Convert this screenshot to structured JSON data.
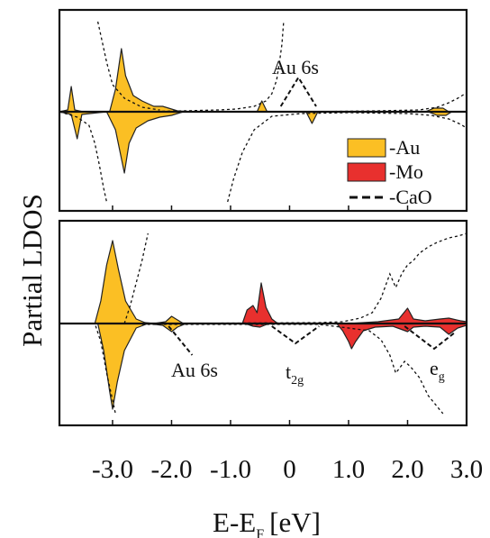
{
  "chart_data": [
    {
      "type": "area",
      "panel": "top",
      "x_range": [
        -3.9,
        3.0
      ],
      "y_range": [
        -1.0,
        1.0
      ],
      "grid": false,
      "legend": {
        "placement": "right",
        "entries": [
          {
            "label": "-Au",
            "style": "fill",
            "color": "#fbbf24"
          },
          {
            "label": "-Mo",
            "style": "fill",
            "color": "#e8302e"
          },
          {
            "label": "-CaO",
            "style": "dashed",
            "color": "#111111"
          }
        ]
      },
      "annotations": [
        {
          "text": "Au 6s",
          "x": 0.15,
          "y": 0.48,
          "pointers": [
            [
              -0.15,
              0.06
            ],
            [
              0.45,
              0.06
            ]
          ]
        }
      ],
      "series": [
        {
          "name": "Au",
          "color": "#fbbf24",
          "up": [
            [
              -3.9,
              0
            ],
            [
              -3.76,
              0.02
            ],
            [
              -3.7,
              0.28
            ],
            [
              -3.64,
              0.02
            ],
            [
              -3.5,
              0
            ],
            [
              -3.05,
              0
            ],
            [
              -2.95,
              0.25
            ],
            [
              -2.85,
              0.7
            ],
            [
              -2.78,
              0.4
            ],
            [
              -2.65,
              0.18
            ],
            [
              -2.5,
              0.12
            ],
            [
              -2.3,
              0.06
            ],
            [
              -2.15,
              0.06
            ],
            [
              -2.05,
              0.04
            ],
            [
              -1.9,
              0.01
            ],
            [
              -1.7,
              0
            ],
            [
              -0.55,
              0
            ],
            [
              -0.47,
              0.12
            ],
            [
              -0.38,
              0
            ],
            [
              2.3,
              0
            ],
            [
              2.45,
              0.04
            ],
            [
              2.6,
              0.04
            ],
            [
              2.7,
              0
            ],
            [
              3.0,
              0
            ]
          ],
          "down": [
            [
              -3.9,
              0
            ],
            [
              -3.7,
              -0.03
            ],
            [
              -3.6,
              -0.3
            ],
            [
              -3.52,
              -0.03
            ],
            [
              -3.1,
              0
            ],
            [
              -2.95,
              -0.2
            ],
            [
              -2.8,
              -0.68
            ],
            [
              -2.72,
              -0.35
            ],
            [
              -2.6,
              -0.18
            ],
            [
              -2.4,
              -0.1
            ],
            [
              -2.2,
              -0.06
            ],
            [
              -2.0,
              -0.04
            ],
            [
              -1.8,
              0
            ],
            [
              0.28,
              0
            ],
            [
              0.38,
              -0.13
            ],
            [
              0.48,
              0
            ],
            [
              2.35,
              0
            ],
            [
              2.5,
              -0.04
            ],
            [
              2.65,
              -0.04
            ],
            [
              2.75,
              0
            ],
            [
              3.0,
              0
            ]
          ]
        },
        {
          "name": "CaO",
          "color": "#111111",
          "dash": "3 3",
          "up": [
            [
              -3.9,
              0.0
            ],
            [
              -3.4,
              0.0
            ],
            [
              -2.5,
              0.0
            ],
            [
              -1.8,
              0.01
            ],
            [
              -1.2,
              0.02
            ],
            [
              -0.9,
              0.03
            ],
            [
              -0.6,
              0.06
            ],
            [
              -0.4,
              0.12
            ],
            [
              -0.3,
              0.2
            ],
            [
              -0.22,
              0.35
            ],
            [
              -0.17,
              0.55
            ],
            [
              -0.13,
              0.75
            ],
            [
              -0.1,
              1.0
            ]
          ],
          "down": [
            [
              -3.9,
              0
            ],
            [
              -3.6,
              -0.06
            ],
            [
              -3.4,
              -0.15
            ],
            [
              -3.3,
              -0.35
            ],
            [
              -3.22,
              -0.6
            ],
            [
              -3.15,
              -0.85
            ],
            [
              -3.1,
              -1.0
            ]
          ],
          "up2": [
            [
              -3.25,
              1.0
            ],
            [
              -3.2,
              0.85
            ],
            [
              -3.1,
              0.55
            ],
            [
              -3.0,
              0.3
            ],
            [
              -2.8,
              0.15
            ],
            [
              -2.5,
              0.05
            ],
            [
              -2.2,
              0.02
            ]
          ],
          "down2": [
            [
              -1.05,
              -1.0
            ],
            [
              -0.95,
              -0.75
            ],
            [
              -0.8,
              -0.45
            ],
            [
              -0.6,
              -0.2
            ],
            [
              -0.3,
              -0.05
            ],
            [
              0.2,
              -0.02
            ],
            [
              1.0,
              -0.01
            ],
            [
              2.0,
              -0.02
            ],
            [
              2.4,
              -0.04
            ],
            [
              2.7,
              -0.08
            ],
            [
              2.9,
              -0.14
            ],
            [
              3.0,
              -0.18
            ]
          ],
          "up3": [
            [
              0.3,
              0.0
            ],
            [
              1.5,
              0.01
            ],
            [
              2.2,
              0.02
            ],
            [
              2.5,
              0.05
            ],
            [
              2.7,
              0.1
            ],
            [
              2.85,
              0.15
            ],
            [
              3.0,
              0.21
            ]
          ]
        }
      ]
    },
    {
      "type": "area",
      "panel": "bottom",
      "x_range": [
        -3.9,
        3.0
      ],
      "y_range": [
        -1.0,
        1.0
      ],
      "grid": false,
      "annotations": [
        {
          "text": "Au 6s",
          "x": -1.95,
          "y": -0.48,
          "pointers": [
            [
              -2.05,
              -0.03
            ],
            [
              -1.65,
              -0.35
            ]
          ]
        },
        {
          "text": "t",
          "sub": "2g",
          "x": -0.05,
          "y": -0.65,
          "pointers": [
            [
              -0.3,
              -0.03
            ],
            [
              0.1,
              -0.22
            ],
            [
              0.5,
              -0.03
            ]
          ]
        },
        {
          "text": "e",
          "sub": "g",
          "x": 2.45,
          "y": -0.65,
          "pointers": [
            [
              1.95,
              -0.03
            ],
            [
              2.45,
              -0.28
            ],
            [
              2.8,
              -0.1
            ]
          ]
        }
      ],
      "series": [
        {
          "name": "Au",
          "color": "#fbbf24",
          "up": [
            [
              -3.9,
              0
            ],
            [
              -3.3,
              0
            ],
            [
              -3.2,
              0.25
            ],
            [
              -3.1,
              0.65
            ],
            [
              -3.0,
              0.92
            ],
            [
              -2.9,
              0.6
            ],
            [
              -2.78,
              0.25
            ],
            [
              -2.6,
              0.05
            ],
            [
              -2.45,
              0.01
            ],
            [
              -2.3,
              0
            ],
            [
              -2.1,
              0.02
            ],
            [
              -2.0,
              0.08
            ],
            [
              -1.9,
              0.04
            ],
            [
              -1.8,
              0
            ],
            [
              3.0,
              0
            ]
          ],
          "down": [
            [
              -3.9,
              0
            ],
            [
              -3.25,
              0
            ],
            [
              -3.15,
              -0.3
            ],
            [
              -3.05,
              -0.75
            ],
            [
              -3.0,
              -0.95
            ],
            [
              -2.92,
              -0.65
            ],
            [
              -2.8,
              -0.3
            ],
            [
              -2.6,
              -0.05
            ],
            [
              -2.4,
              0
            ],
            [
              -2.15,
              -0.02
            ],
            [
              -2.0,
              -0.09
            ],
            [
              -1.9,
              -0.04
            ],
            [
              -1.75,
              0
            ],
            [
              3.0,
              0
            ]
          ]
        },
        {
          "name": "Mo",
          "color": "#e8302e",
          "up": [
            [
              -3.9,
              0
            ],
            [
              -0.8,
              0
            ],
            [
              -0.72,
              0.15
            ],
            [
              -0.62,
              0.2
            ],
            [
              -0.55,
              0.12
            ],
            [
              -0.48,
              0.45
            ],
            [
              -0.4,
              0.18
            ],
            [
              -0.3,
              0.05
            ],
            [
              -0.2,
              0
            ],
            [
              1.0,
              0
            ],
            [
              1.5,
              0.02
            ],
            [
              1.85,
              0.05
            ],
            [
              2.0,
              0.17
            ],
            [
              2.1,
              0.05
            ],
            [
              2.3,
              0.03
            ],
            [
              2.55,
              0.05
            ],
            [
              2.7,
              0.06
            ],
            [
              2.9,
              0.03
            ],
            [
              3.0,
              0.02
            ]
          ],
          "down": [
            [
              -3.9,
              0
            ],
            [
              -0.75,
              0
            ],
            [
              -0.62,
              -0.03
            ],
            [
              -0.5,
              -0.04
            ],
            [
              -0.35,
              0
            ],
            [
              0.8,
              0
            ],
            [
              0.9,
              -0.08
            ],
            [
              1.0,
              -0.2
            ],
            [
              1.05,
              -0.28
            ],
            [
              1.12,
              -0.2
            ],
            [
              1.25,
              -0.08
            ],
            [
              1.45,
              -0.04
            ],
            [
              1.75,
              -0.03
            ],
            [
              2.0,
              -0.09
            ],
            [
              2.1,
              -0.04
            ],
            [
              2.3,
              -0.03
            ],
            [
              2.55,
              -0.04
            ],
            [
              2.7,
              -0.12
            ],
            [
              2.85,
              -0.05
            ],
            [
              3.0,
              -0.02
            ]
          ]
        },
        {
          "name": "CaO",
          "color": "#111111",
          "dash": "3 3",
          "up": [
            [
              -3.9,
              0.0
            ],
            [
              -3.2,
              0.0
            ],
            [
              -2.8,
              0.0
            ],
            [
              -2.7,
              0.2
            ],
            [
              -2.6,
              0.45
            ],
            [
              -2.5,
              0.7
            ],
            [
              -2.45,
              0.85
            ],
            [
              -2.4,
              1.0
            ]
          ],
          "up2": [
            [
              -2.35,
              0.0
            ],
            [
              0.5,
              0.01
            ],
            [
              0.9,
              0.02
            ],
            [
              1.2,
              0.06
            ],
            [
              1.4,
              0.12
            ],
            [
              1.55,
              0.28
            ],
            [
              1.7,
              0.55
            ],
            [
              1.8,
              0.4
            ],
            [
              1.9,
              0.55
            ],
            [
              2.0,
              0.65
            ],
            [
              2.1,
              0.7
            ],
            [
              2.2,
              0.78
            ],
            [
              2.35,
              0.85
            ],
            [
              2.5,
              0.9
            ],
            [
              2.7,
              0.95
            ],
            [
              2.85,
              0.97
            ],
            [
              3.0,
              1.0
            ]
          ],
          "down": [
            [
              -3.9,
              0.0
            ],
            [
              -3.3,
              0.0
            ],
            [
              -3.2,
              -0.2
            ],
            [
              -3.1,
              -0.55
            ],
            [
              -3.0,
              -0.85
            ],
            [
              -2.95,
              -1.0
            ]
          ],
          "down2": [
            [
              -2.5,
              -0.01
            ],
            [
              0.5,
              -0.01
            ],
            [
              1.0,
              -0.05
            ],
            [
              1.35,
              -0.08
            ],
            [
              1.55,
              -0.18
            ],
            [
              1.7,
              -0.35
            ],
            [
              1.8,
              -0.55
            ],
            [
              1.95,
              -0.42
            ],
            [
              2.05,
              -0.48
            ],
            [
              2.2,
              -0.6
            ],
            [
              2.35,
              -0.8
            ],
            [
              2.5,
              -0.92
            ],
            [
              2.6,
              -1.0
            ]
          ]
        }
      ]
    }
  ],
  "ylabel": "Partial LDOS",
  "xlabel_main": "E-E",
  "xlabel_sub": "F",
  "xlabel_unit": "[eV]",
  "xticks": [
    -3.0,
    -2.0,
    -1.0,
    0,
    1.0,
    2.0,
    3.0
  ],
  "xtick_labels": [
    "-3.0",
    "-2.0",
    "-1.0",
    "0",
    "1.0",
    "2.0",
    "3.0"
  ]
}
